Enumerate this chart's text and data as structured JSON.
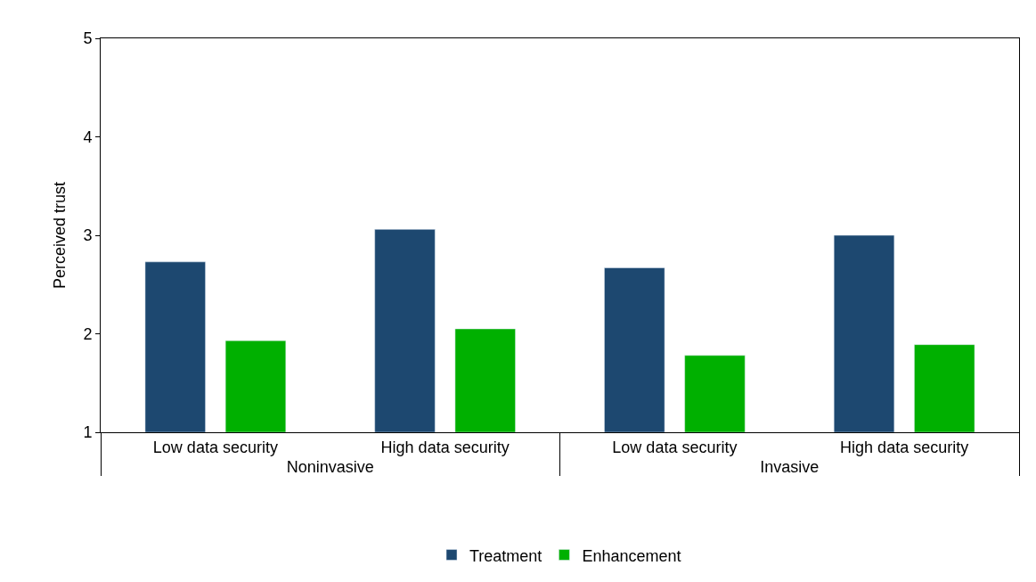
{
  "chart_data": {
    "type": "bar",
    "ylabel": "Perceived trust",
    "categories": [
      "Low data security",
      "High data security",
      "Low data security",
      "High data security"
    ],
    "annotations": [
      "Noninvasive",
      "Invasive"
    ],
    "series": [
      {
        "name": "Treatment",
        "color": "#1d4870",
        "values": [
          2.73,
          3.06,
          2.67,
          3.0
        ]
      },
      {
        "name": "Enhancement",
        "color": "#00b000",
        "values": [
          1.93,
          2.05,
          1.78,
          1.89
        ]
      }
    ],
    "ylim": [
      1,
      5
    ],
    "yticks": [
      1,
      2,
      3,
      4,
      5
    ],
    "grid": false,
    "legend": "bottom"
  }
}
